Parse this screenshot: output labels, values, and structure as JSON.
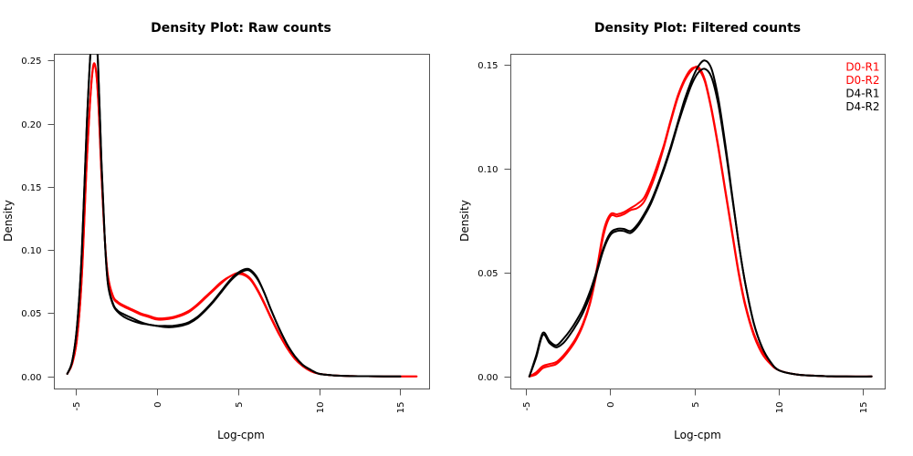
{
  "chart_data": [
    {
      "type": "line",
      "title": "Density Plot: Raw counts",
      "xlabel": "Log-cpm",
      "ylabel": "Density",
      "xlim": [
        -6.3,
        16.8
      ],
      "ylim": [
        -0.01,
        0.255
      ],
      "xticks": [
        -5,
        0,
        5,
        10,
        15
      ],
      "xtick_labels": [
        "-5",
        "0",
        "5",
        "10",
        "15"
      ],
      "yticks": [
        0.0,
        0.05,
        0.1,
        0.15,
        0.2,
        0.25
      ],
      "ytick_labels": [
        "0.00",
        "0.05",
        "0.10",
        "0.15",
        "0.20",
        "0.25"
      ],
      "grid": false,
      "legend": null,
      "series": [
        {
          "name": "D0-R1",
          "color": "#ff0000",
          "x": [
            -5.5,
            -5.2,
            -4.9,
            -4.6,
            -4.3,
            -4.0,
            -3.8,
            -3.6,
            -3.4,
            -3.2,
            -3.0,
            -2.7,
            -2.4,
            -2.0,
            -1.5,
            -1.0,
            -0.5,
            0.0,
            0.5,
            1.0,
            1.5,
            2.0,
            2.5,
            3.0,
            3.5,
            4.0,
            4.5,
            5.0,
            5.4,
            5.8,
            6.2,
            6.6,
            7.0,
            7.5,
            8.0,
            8.5,
            9.0,
            9.5,
            10.0,
            11.0,
            12.0,
            13.0,
            14.0,
            15.0,
            16.0
          ],
          "y": [
            0.002,
            0.01,
            0.03,
            0.08,
            0.17,
            0.235,
            0.247,
            0.22,
            0.16,
            0.11,
            0.08,
            0.064,
            0.059,
            0.056,
            0.053,
            0.05,
            0.048,
            0.046,
            0.046,
            0.047,
            0.049,
            0.052,
            0.057,
            0.063,
            0.069,
            0.075,
            0.079,
            0.081,
            0.08,
            0.076,
            0.068,
            0.058,
            0.047,
            0.034,
            0.023,
            0.014,
            0.008,
            0.004,
            0.002,
            0.0006,
            0.0002,
            0.0001,
            0.0,
            0.0,
            0.0
          ]
        },
        {
          "name": "D0-R2",
          "color": "#ff0000",
          "x": [
            -5.5,
            -5.2,
            -4.9,
            -4.6,
            -4.3,
            -4.0,
            -3.8,
            -3.6,
            -3.4,
            -3.2,
            -3.0,
            -2.7,
            -2.4,
            -2.0,
            -1.5,
            -1.0,
            -0.5,
            0.0,
            0.5,
            1.0,
            1.5,
            2.0,
            2.5,
            3.0,
            3.5,
            4.0,
            4.5,
            5.0,
            5.4,
            5.8,
            6.2,
            6.6,
            7.0,
            7.5,
            8.0,
            8.5,
            9.0,
            9.5,
            10.0,
            11.0,
            12.0,
            13.0,
            14.0,
            15.0,
            16.0
          ],
          "y": [
            0.002,
            0.01,
            0.03,
            0.08,
            0.17,
            0.234,
            0.246,
            0.219,
            0.16,
            0.11,
            0.079,
            0.063,
            0.058,
            0.055,
            0.052,
            0.049,
            0.047,
            0.045,
            0.045,
            0.046,
            0.048,
            0.051,
            0.056,
            0.062,
            0.068,
            0.074,
            0.079,
            0.082,
            0.081,
            0.077,
            0.069,
            0.059,
            0.048,
            0.035,
            0.023,
            0.014,
            0.008,
            0.004,
            0.002,
            0.0006,
            0.0002,
            0.0001,
            0.0,
            0.0,
            0.0
          ]
        },
        {
          "name": "D4-R1",
          "color": "#000000",
          "x": [
            -5.5,
            -5.2,
            -4.9,
            -4.6,
            -4.3,
            -4.0,
            -3.8,
            -3.6,
            -3.4,
            -3.2,
            -3.0,
            -2.7,
            -2.4,
            -2.0,
            -1.5,
            -1.0,
            -0.5,
            0.0,
            0.5,
            1.0,
            1.5,
            2.0,
            2.5,
            3.0,
            3.5,
            4.0,
            4.5,
            5.0,
            5.5,
            5.8,
            6.2,
            6.6,
            7.0,
            7.5,
            8.0,
            8.5,
            9.0,
            9.5,
            10.0,
            11.0,
            12.0,
            13.0,
            14.0,
            15.0
          ],
          "y": [
            0.002,
            0.012,
            0.04,
            0.1,
            0.2,
            0.27,
            0.28,
            0.245,
            0.17,
            0.11,
            0.074,
            0.058,
            0.052,
            0.049,
            0.046,
            0.043,
            0.041,
            0.04,
            0.04,
            0.04,
            0.041,
            0.043,
            0.047,
            0.053,
            0.06,
            0.068,
            0.076,
            0.082,
            0.085,
            0.084,
            0.078,
            0.067,
            0.054,
            0.039,
            0.026,
            0.016,
            0.009,
            0.005,
            0.002,
            0.0007,
            0.0002,
            0.0001,
            0.0,
            0.0
          ]
        },
        {
          "name": "D4-R2",
          "color": "#000000",
          "x": [
            -5.5,
            -5.2,
            -4.9,
            -4.6,
            -4.3,
            -4.0,
            -3.8,
            -3.6,
            -3.4,
            -3.2,
            -3.0,
            -2.7,
            -2.4,
            -2.0,
            -1.5,
            -1.0,
            -0.5,
            0.0,
            0.5,
            1.0,
            1.5,
            2.0,
            2.5,
            3.0,
            3.5,
            4.0,
            4.5,
            5.0,
            5.5,
            5.8,
            6.2,
            6.6,
            7.0,
            7.5,
            8.0,
            8.5,
            9.0,
            9.5,
            10.0,
            11.0,
            12.0,
            13.0,
            14.0,
            15.0
          ],
          "y": [
            0.002,
            0.012,
            0.04,
            0.1,
            0.2,
            0.27,
            0.28,
            0.245,
            0.17,
            0.11,
            0.073,
            0.057,
            0.051,
            0.047,
            0.044,
            0.042,
            0.041,
            0.04,
            0.039,
            0.039,
            0.04,
            0.042,
            0.046,
            0.052,
            0.059,
            0.067,
            0.075,
            0.081,
            0.084,
            0.083,
            0.077,
            0.067,
            0.054,
            0.039,
            0.026,
            0.016,
            0.009,
            0.005,
            0.002,
            0.0007,
            0.0002,
            0.0001,
            0.0,
            0.0
          ]
        }
      ]
    },
    {
      "type": "line",
      "title": "Density Plot: Filtered counts",
      "xlabel": "Log-cpm",
      "ylabel": "Density",
      "xlim": [
        -5.9,
        16.3
      ],
      "ylim": [
        -0.006,
        0.155
      ],
      "xticks": [
        -5,
        0,
        5,
        10,
        15
      ],
      "xtick_labels": [
        "-5",
        "0",
        "5",
        "10",
        "15"
      ],
      "yticks": [
        0.0,
        0.05,
        0.1,
        0.15
      ],
      "ytick_labels": [
        "0.00",
        "0.05",
        "0.10",
        "0.15"
      ],
      "grid": false,
      "legend": {
        "position": "top-right",
        "entries": [
          {
            "label": "D0-R1",
            "color": "#ff0000"
          },
          {
            "label": "D0-R2",
            "color": "#ff0000"
          },
          {
            "label": "D4-R1",
            "color": "#000000"
          },
          {
            "label": "D4-R2",
            "color": "#000000"
          }
        ]
      },
      "series": [
        {
          "name": "D0-R1",
          "color": "#ff0000",
          "x": [
            -4.8,
            -4.4,
            -4.0,
            -3.6,
            -3.2,
            -2.8,
            -2.4,
            -2.0,
            -1.6,
            -1.2,
            -0.8,
            -0.4,
            0.0,
            0.4,
            0.8,
            1.2,
            1.6,
            2.0,
            2.4,
            2.8,
            3.2,
            3.6,
            4.0,
            4.4,
            4.8,
            5.2,
            5.6,
            6.0,
            6.4,
            6.8,
            7.2,
            7.6,
            8.0,
            8.5,
            9.0,
            9.5,
            10.0,
            11.0,
            12.0,
            13.0,
            14.0,
            15.5
          ],
          "y": [
            0.0,
            0.002,
            0.005,
            0.006,
            0.007,
            0.01,
            0.014,
            0.019,
            0.026,
            0.036,
            0.052,
            0.07,
            0.078,
            0.078,
            0.079,
            0.081,
            0.083,
            0.086,
            0.093,
            0.102,
            0.112,
            0.124,
            0.135,
            0.143,
            0.148,
            0.148,
            0.142,
            0.128,
            0.11,
            0.09,
            0.07,
            0.05,
            0.034,
            0.02,
            0.011,
            0.006,
            0.003,
            0.001,
            0.0004,
            0.0001,
            0.0,
            0.0
          ]
        },
        {
          "name": "D0-R2",
          "color": "#ff0000",
          "x": [
            -4.8,
            -4.4,
            -4.0,
            -3.6,
            -3.2,
            -2.8,
            -2.4,
            -2.0,
            -1.6,
            -1.2,
            -0.8,
            -0.4,
            0.0,
            0.4,
            0.8,
            1.2,
            1.6,
            2.0,
            2.4,
            2.8,
            3.2,
            3.6,
            4.0,
            4.4,
            4.8,
            5.2,
            5.6,
            6.0,
            6.4,
            6.8,
            7.2,
            7.6,
            8.0,
            8.5,
            9.0,
            9.5,
            10.0,
            11.0,
            12.0,
            13.0,
            14.0,
            15.5
          ],
          "y": [
            0.0,
            0.001,
            0.004,
            0.005,
            0.006,
            0.009,
            0.013,
            0.018,
            0.025,
            0.035,
            0.05,
            0.068,
            0.077,
            0.077,
            0.078,
            0.08,
            0.081,
            0.084,
            0.091,
            0.1,
            0.111,
            0.123,
            0.134,
            0.142,
            0.147,
            0.149,
            0.143,
            0.129,
            0.111,
            0.091,
            0.071,
            0.051,
            0.035,
            0.021,
            0.012,
            0.006,
            0.003,
            0.001,
            0.0004,
            0.0001,
            0.0,
            0.0
          ]
        },
        {
          "name": "D4-R1",
          "color": "#000000",
          "x": [
            -4.8,
            -4.4,
            -4.0,
            -3.6,
            -3.2,
            -2.8,
            -2.4,
            -2.0,
            -1.6,
            -1.2,
            -0.8,
            -0.4,
            0.0,
            0.4,
            0.8,
            1.2,
            1.6,
            2.0,
            2.4,
            2.8,
            3.2,
            3.6,
            4.0,
            4.4,
            4.8,
            5.2,
            5.6,
            6.0,
            6.4,
            6.8,
            7.2,
            7.6,
            8.0,
            8.5,
            9.0,
            9.5,
            10.0,
            11.0,
            12.0,
            13.0,
            14.0,
            15.5
          ],
          "y": [
            0.0,
            0.01,
            0.021,
            0.017,
            0.015,
            0.018,
            0.022,
            0.027,
            0.033,
            0.041,
            0.051,
            0.062,
            0.069,
            0.071,
            0.071,
            0.07,
            0.073,
            0.078,
            0.084,
            0.092,
            0.101,
            0.111,
            0.122,
            0.133,
            0.142,
            0.149,
            0.152,
            0.148,
            0.134,
            0.113,
            0.089,
            0.065,
            0.045,
            0.026,
            0.014,
            0.007,
            0.003,
            0.001,
            0.0004,
            0.0001,
            0.0,
            0.0
          ]
        },
        {
          "name": "D4-R2",
          "color": "#000000",
          "x": [
            -4.8,
            -4.4,
            -4.0,
            -3.6,
            -3.2,
            -2.8,
            -2.4,
            -2.0,
            -1.6,
            -1.2,
            -0.8,
            -0.4,
            0.0,
            0.4,
            0.8,
            1.2,
            1.6,
            2.0,
            2.4,
            2.8,
            3.2,
            3.6,
            4.0,
            4.4,
            4.8,
            5.2,
            5.6,
            6.0,
            6.4,
            6.8,
            7.2,
            7.6,
            8.0,
            8.5,
            9.0,
            9.5,
            10.0,
            11.0,
            12.0,
            13.0,
            14.0,
            15.5
          ],
          "y": [
            0.0,
            0.009,
            0.02,
            0.016,
            0.014,
            0.016,
            0.02,
            0.025,
            0.031,
            0.039,
            0.05,
            0.061,
            0.068,
            0.07,
            0.07,
            0.069,
            0.072,
            0.077,
            0.083,
            0.091,
            0.1,
            0.11,
            0.121,
            0.131,
            0.14,
            0.146,
            0.148,
            0.144,
            0.131,
            0.111,
            0.088,
            0.065,
            0.045,
            0.026,
            0.014,
            0.007,
            0.003,
            0.001,
            0.0004,
            0.0001,
            0.0,
            0.0
          ]
        }
      ]
    }
  ]
}
